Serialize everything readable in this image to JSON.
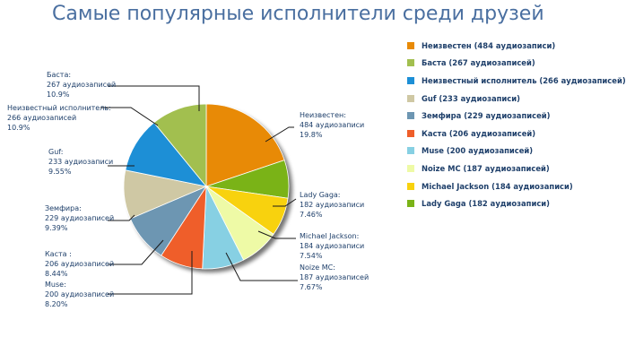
{
  "title": "Самые популярные исполнители среди друзей",
  "colors": {
    "title": "#4a6fa0",
    "text": "#1e3f6a",
    "leader": "#1a1a1a"
  },
  "chart_data": {
    "type": "pie",
    "title": "Самые популярные исполнители среди друзей",
    "legend_position": "right",
    "slices": [
      {
        "label": "Неизвестен",
        "count": "484 аудиозаписи",
        "percent": 19.8,
        "percent_label": "19.8%",
        "legend": "Неизвестен (484 аудиозаписи)",
        "color": "#e88a06"
      },
      {
        "label": "Lady Gaga",
        "count": "182 аудиозаписи",
        "percent": 7.46,
        "percent_label": "7.46%",
        "legend": "Lady Gaga (182 аудиозаписи)",
        "color": "#7ab317"
      },
      {
        "label": "Michael Jackson",
        "count": "184 аудиозаписи",
        "percent": 7.54,
        "percent_label": "7.54%",
        "legend": "Michael Jackson (184 аудиозаписи)",
        "color": "#f8d20e"
      },
      {
        "label": "Noize MC",
        "count": "187 аудиозаписей",
        "percent": 7.67,
        "percent_label": "7.67%",
        "legend": "Noize MC (187 аудиозаписей)",
        "color": "#eefaa6"
      },
      {
        "label": "Muse",
        "count": "200 аудиозаписей",
        "percent": 8.2,
        "percent_label": "8.20%",
        "legend": "Muse (200 аудиозаписей)",
        "color": "#87d0e3"
      },
      {
        "label": "Каста",
        "count": "206 аудиозаписей",
        "percent": 8.44,
        "percent_label": "8.44%",
        "legend": "Каста  (206 аудиозаписей)",
        "color": "#ef5e2a"
      },
      {
        "label": "Земфира",
        "count": "229 аудиозаписей",
        "percent": 9.39,
        "percent_label": "9.39%",
        "legend": "Земфира (229 аудиозаписей)",
        "color": "#6d96b2"
      },
      {
        "label": "Guf",
        "count": "233 аудиозаписи",
        "percent": 9.55,
        "percent_label": "9.55%",
        "legend": "Guf (233 аудиозаписи)",
        "color": "#cfc8a4"
      },
      {
        "label": "Неизвестный исполнитель",
        "count": "266 аудиозаписей",
        "percent": 10.9,
        "percent_label": "10.9%",
        "legend": "Неизвестный исполнитель (266 аудиозаписей)",
        "color": "#1d8fd6"
      },
      {
        "label": "Баста",
        "count": "267 аудиозаписей",
        "percent": 10.9,
        "percent_label": "10.9%",
        "legend": "Баста (267 аудиозаписей)",
        "color": "#a2bf4f"
      }
    ]
  },
  "labels": [
    {
      "lines": [
        "Неизвестен:",
        "484 аудиозаписи",
        "19.8%"
      ]
    },
    {
      "lines": [
        "Lady Gaga:",
        "182 аудиозаписи",
        "7.46%"
      ]
    },
    {
      "lines": [
        "Michael Jackson:",
        "184 аудиозаписи",
        "7.54%"
      ]
    },
    {
      "lines": [
        "Noize MC:",
        "187 аудиозаписей",
        "7.67%"
      ]
    },
    {
      "lines": [
        "Muse:",
        "200 аудиозаписей",
        "8.20%"
      ]
    },
    {
      "lines": [
        "Каста :",
        "206 аудиозаписей",
        "8.44%"
      ]
    },
    {
      "lines": [
        "Земфира:",
        "229 аудиозаписей",
        "9.39%"
      ]
    },
    {
      "lines": [
        "Guf:",
        "233 аудиозаписи",
        "9.55%"
      ]
    },
    {
      "lines": [
        "Неизвестный исполнитель:",
        "266 аудиозаписей",
        "10.9%"
      ]
    },
    {
      "lines": [
        "Баста:",
        "267 аудиозаписей",
        "10.9%"
      ]
    }
  ],
  "legend_items": [
    {
      "label": "Неизвестен (484 аудиозаписи)",
      "color": "#e88a06"
    },
    {
      "label": "Баста (267 аудиозаписей)",
      "color": "#a2bf4f"
    },
    {
      "label": "Неизвестный исполнитель (266 аудиозаписей)",
      "color": "#1d8fd6"
    },
    {
      "label": "Guf (233 аудиозаписи)",
      "color": "#cfc8a4"
    },
    {
      "label": "Земфира (229 аудиозаписей)",
      "color": "#6d96b2"
    },
    {
      "label": "Каста  (206 аудиозаписей)",
      "color": "#ef5e2a"
    },
    {
      "label": "Muse (200 аудиозаписей)",
      "color": "#87d0e3"
    },
    {
      "label": "Noize MC (187 аудиозаписей)",
      "color": "#eefaa6"
    },
    {
      "label": "Michael Jackson (184 аудиозаписи)",
      "color": "#f8d20e"
    },
    {
      "label": "Lady Gaga (182 аудиозаписи)",
      "color": "#7ab317"
    }
  ]
}
